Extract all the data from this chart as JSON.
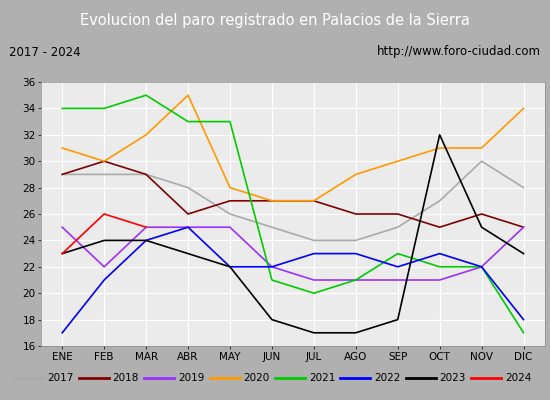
{
  "title": "Evolucion del paro registrado en Palacios de la Sierra",
  "subtitle_left": "2017 - 2024",
  "subtitle_right": "http://www.foro-ciudad.com",
  "months": [
    "ENE",
    "FEB",
    "MAR",
    "ABR",
    "MAY",
    "JUN",
    "JUL",
    "AGO",
    "SEP",
    "OCT",
    "NOV",
    "DIC"
  ],
  "ylim": [
    16,
    36
  ],
  "yticks": [
    16,
    18,
    20,
    22,
    24,
    26,
    28,
    30,
    32,
    34,
    36
  ],
  "series": {
    "2017": {
      "color": "#aaaaaa",
      "values": [
        29,
        29,
        29,
        28,
        26,
        25,
        24,
        24,
        25,
        27,
        30,
        28
      ]
    },
    "2018": {
      "color": "#800000",
      "values": [
        29,
        30,
        29,
        26,
        27,
        27,
        27,
        26,
        26,
        25,
        26,
        25
      ]
    },
    "2019": {
      "color": "#9b30ff",
      "values": [
        25,
        22,
        25,
        25,
        25,
        22,
        21,
        21,
        21,
        21,
        22,
        25
      ]
    },
    "2020": {
      "color": "#ff9900",
      "values": [
        31,
        30,
        32,
        35,
        28,
        27,
        27,
        29,
        30,
        31,
        31,
        34
      ]
    },
    "2021": {
      "color": "#00cc00",
      "values": [
        34,
        34,
        35,
        33,
        33,
        21,
        20,
        21,
        23,
        22,
        22,
        17
      ]
    },
    "2022": {
      "color": "#0000ff",
      "values": [
        17,
        21,
        24,
        25,
        22,
        22,
        23,
        23,
        22,
        23,
        22,
        18
      ]
    },
    "2023": {
      "color": "#000000",
      "values": [
        23,
        24,
        24,
        23,
        22,
        18,
        17,
        17,
        18,
        32,
        25,
        23
      ]
    },
    "2024": {
      "color": "#ff0000",
      "values": [
        23,
        26,
        25,
        null,
        null,
        null,
        null,
        null,
        null,
        null,
        null,
        null
      ]
    }
  },
  "plot_bg_color": "#ebebeb",
  "title_bg_color": "#4a86c8",
  "title_color": "white",
  "header_bg_color": "#d4d4d4",
  "legend_bg_color": "#e0e0e0",
  "outer_bg_color": "#b0b0b0",
  "border_color": "#888888"
}
